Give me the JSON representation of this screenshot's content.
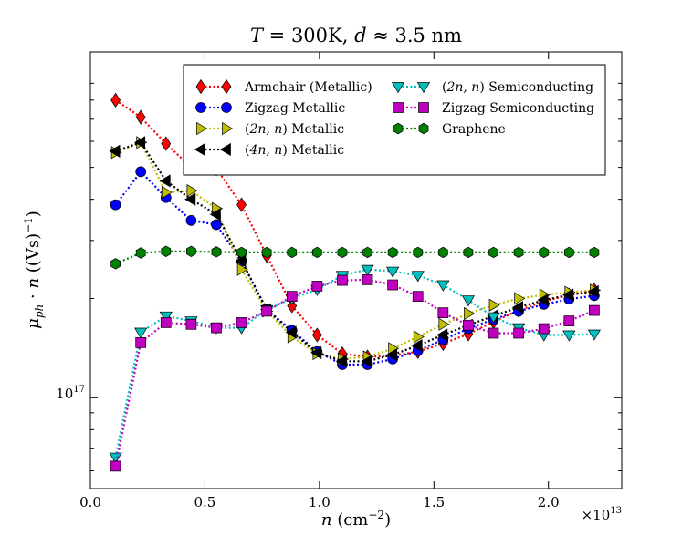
{
  "chart_data": {
    "type": "line",
    "title": "T = 300K, d ≈ 3.5 nm",
    "title_parts": {
      "t_sym": "T",
      "t_rest": " = 300K, ",
      "d_sym": "d",
      "d_rest": " ≈ 3.5 nm"
    },
    "xlabel": "n (cm⁻²)",
    "xlabel_parts": {
      "sym": "n",
      "rest": " (cm",
      "exp": "−2",
      "close": ")"
    },
    "ylabel": "μph · n ((Vs)⁻¹)",
    "ylabel_parts": {
      "mu": "μ",
      "sub": "ph",
      "dot": " · ",
      "n": "n",
      "rest": " ((Vs)",
      "exp": "−1",
      "close": ")"
    },
    "x_offset": "×10¹³",
    "x_offset_parts": {
      "base": "×10",
      "exp": "13"
    },
    "y_scale": "log",
    "xlim": [
      0.0,
      2.32
    ],
    "ylim": [
      5.3e+16,
      1.12e+18
    ],
    "xticks": [
      0.0,
      0.5,
      1.0,
      1.5,
      2.0
    ],
    "xtick_labels": [
      "0.0",
      "0.5",
      "1.0",
      "1.5",
      "2.0"
    ],
    "ytick_major": [
      1e+17
    ],
    "ytick_major_labels": [
      {
        "base": "10",
        "exp": "17"
      }
    ],
    "ytick_minor": [
      6e+16,
      7e+16,
      8e+16,
      9e+16,
      2e+17,
      3e+17,
      4e+17,
      5e+17,
      6e+17,
      7e+17,
      8e+17,
      9e+17
    ],
    "grid": false,
    "legend_position": "top-right",
    "x": [
      0.11,
      0.22,
      0.33,
      0.44,
      0.55,
      0.66,
      0.77,
      0.88,
      0.99,
      1.1,
      1.21,
      1.32,
      1.43,
      1.54,
      1.65,
      1.76,
      1.87,
      1.98,
      2.09,
      2.2
    ],
    "series": [
      {
        "name": "Armchair (Metallic)",
        "color": "#ff0000",
        "marker": "diamond",
        "values": [
          8e+17,
          7.1e+17,
          5.9e+17,
          5e+17,
          4.95e+17,
          3.85e+17,
          2.7e+17,
          1.9e+17,
          1.55e+17,
          1.36e+17,
          1.33e+17,
          1.34e+17,
          1.38e+17,
          1.46e+17,
          1.56e+17,
          1.7e+17,
          1.84e+17,
          1.96e+17,
          2.05e+17,
          2.12e+17
        ]
      },
      {
        "name": "Zigzag Metallic",
        "color": "#0000ff",
        "marker": "circle",
        "values": [
          3.85e+17,
          4.85e+17,
          4.05e+17,
          3.45e+17,
          3.35e+17,
          2.6e+17,
          1.85e+17,
          1.6e+17,
          1.38e+17,
          1.26e+17,
          1.26e+17,
          1.31e+17,
          1.39e+17,
          1.5e+17,
          1.62e+17,
          1.73e+17,
          1.83e+17,
          1.92e+17,
          1.99e+17,
          2.04e+17
        ]
      },
      {
        "name": "(2n, n) Metallic",
        "color": "#bfbf00",
        "marker": "triangle-right",
        "values": [
          5.55e+17,
          5.95e+17,
          4.2e+17,
          4.25e+17,
          3.75e+17,
          2.45e+17,
          1.83e+17,
          1.53e+17,
          1.36e+17,
          1.31e+17,
          1.33e+17,
          1.41e+17,
          1.53e+17,
          1.67e+17,
          1.8e+17,
          1.91e+17,
          2e+17,
          2.05e+17,
          2.09e+17,
          2.12e+17
        ]
      },
      {
        "name": "(4n, n) Metallic",
        "color": "#000000",
        "marker": "triangle-left",
        "values": [
          5.6e+17,
          5.95e+17,
          4.55e+17,
          4e+17,
          3.6e+17,
          2.6e+17,
          1.85e+17,
          1.58e+17,
          1.37e+17,
          1.29e+17,
          1.29e+17,
          1.35e+17,
          1.44e+17,
          1.55e+17,
          1.66e+17,
          1.77e+17,
          1.88e+17,
          1.98e+17,
          2.05e+17,
          2.1e+17
        ]
      },
      {
        "name": "(2n, n) Semiconducting",
        "color": "#00bfbf",
        "marker": "triangle-down",
        "values": [
          6.6e+16,
          1.58e+17,
          1.77e+17,
          1.71e+17,
          1.63e+17,
          1.63e+17,
          1.85e+17,
          2e+17,
          2.13e+17,
          2.35e+17,
          2.45e+17,
          2.42e+17,
          2.35e+17,
          2.2e+17,
          1.98e+17,
          1.76e+17,
          1.63e+17,
          1.55e+17,
          1.55e+17,
          1.56e+17
        ]
      },
      {
        "name": "Zigzag Semiconducting",
        "color": "#bf00bf",
        "marker": "square",
        "values": [
          6.2e+16,
          1.47e+17,
          1.69e+17,
          1.67e+17,
          1.63e+17,
          1.69e+17,
          1.83e+17,
          2.03e+17,
          2.18e+17,
          2.27e+17,
          2.28e+17,
          2.2e+17,
          2.03e+17,
          1.81e+17,
          1.66e+17,
          1.57e+17,
          1.57e+17,
          1.62e+17,
          1.71e+17,
          1.84e+17
        ]
      },
      {
        "name": "Graphene",
        "color": "#007f00",
        "marker": "hexagon",
        "values": [
          2.55e+17,
          2.75e+17,
          2.78e+17,
          2.78e+17,
          2.77e+17,
          2.76e+17,
          2.76e+17,
          2.76e+17,
          2.76e+17,
          2.76e+17,
          2.76e+17,
          2.76e+17,
          2.76e+17,
          2.76e+17,
          2.76e+17,
          2.76e+17,
          2.76e+17,
          2.76e+17,
          2.76e+17,
          2.76e+17
        ]
      }
    ]
  }
}
